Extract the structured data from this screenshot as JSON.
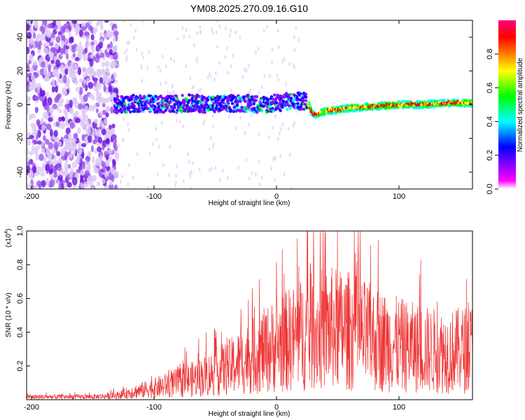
{
  "title": "YM08.2025.270.09.16.G10",
  "chart_data": [
    {
      "type": "heatmap",
      "xlabel": "Height of straight line (km)",
      "ylabel": "Frequency (Hz)",
      "xlim": [
        -204,
        160
      ],
      "ylim": [
        -50,
        50
      ],
      "xticks": [
        -200,
        -100,
        0,
        100
      ],
      "xtick_labels": [
        "-200",
        "-100",
        "0",
        "100"
      ],
      "yticks": [
        -40,
        -20,
        0,
        20,
        40
      ],
      "ytick_labels": [
        "-40",
        "-20",
        "0",
        "20",
        "40"
      ],
      "colorbar": {
        "label": "Normalized spectral amplitude",
        "range": [
          0,
          1
        ],
        "ticks": [
          0.0,
          0.2,
          0.4,
          0.6,
          0.8
        ],
        "tick_labels": [
          "0.0",
          "0.2",
          "0.4",
          "0.6",
          "0.8"
        ],
        "colors": [
          "#ffffff",
          "#ff00ff",
          "#7f00ff",
          "#0000ff",
          "#00ffff",
          "#00ff00",
          "#ffff00",
          "#ff7f00",
          "#ff0000",
          "#ff0080"
        ]
      },
      "trace": {
        "x": [
          -130,
          -110,
          -90,
          -70,
          -50,
          -30,
          -10,
          10,
          25,
          30,
          40,
          60,
          80,
          100,
          120,
          140,
          160
        ],
        "freq": [
          0,
          1,
          0,
          1,
          0,
          1,
          0,
          2,
          2,
          -6,
          -4,
          -2,
          -1,
          0,
          0,
          1,
          1
        ]
      },
      "scatter_region": {
        "x": [
          -204,
          -130
        ],
        "freq": [
          -50,
          50
        ]
      }
    },
    {
      "type": "line",
      "title": "",
      "xlabel": "Height of straight line (km)",
      "ylabel": "SNR (10 * v/v)",
      "y_multiplier": "(x10^4)",
      "y_multiplier_base": "(x10",
      "y_multiplier_exp": "4",
      "y_multiplier_close": ")",
      "xlim": [
        -204,
        160
      ],
      "ylim": [
        0,
        1.0
      ],
      "xticks": [
        -200,
        -100,
        0,
        100
      ],
      "xtick_labels": [
        "-200",
        "-100",
        "0",
        "100"
      ],
      "yticks": [
        0.2,
        0.4,
        0.6,
        0.8,
        1.0
      ],
      "ytick_labels": [
        "0.2",
        "0.4",
        "0.6",
        "0.8",
        "1.0"
      ],
      "series": [
        {
          "name": "SNR",
          "color": "#ee3333",
          "envelope_x": [
            -204,
            -180,
            -150,
            -130,
            -120,
            -100,
            -80,
            -60,
            -40,
            -20,
            0,
            20,
            40,
            60,
            80,
            100,
            120,
            140,
            160
          ],
          "envelope_y": [
            0.02,
            0.02,
            0.02,
            0.03,
            0.05,
            0.08,
            0.12,
            0.16,
            0.22,
            0.3,
            0.38,
            0.45,
            0.5,
            0.48,
            0.42,
            0.38,
            0.35,
            0.33,
            0.36
          ],
          "peak_x": [
            40
          ],
          "peak_y": [
            0.99
          ]
        }
      ]
    }
  ]
}
